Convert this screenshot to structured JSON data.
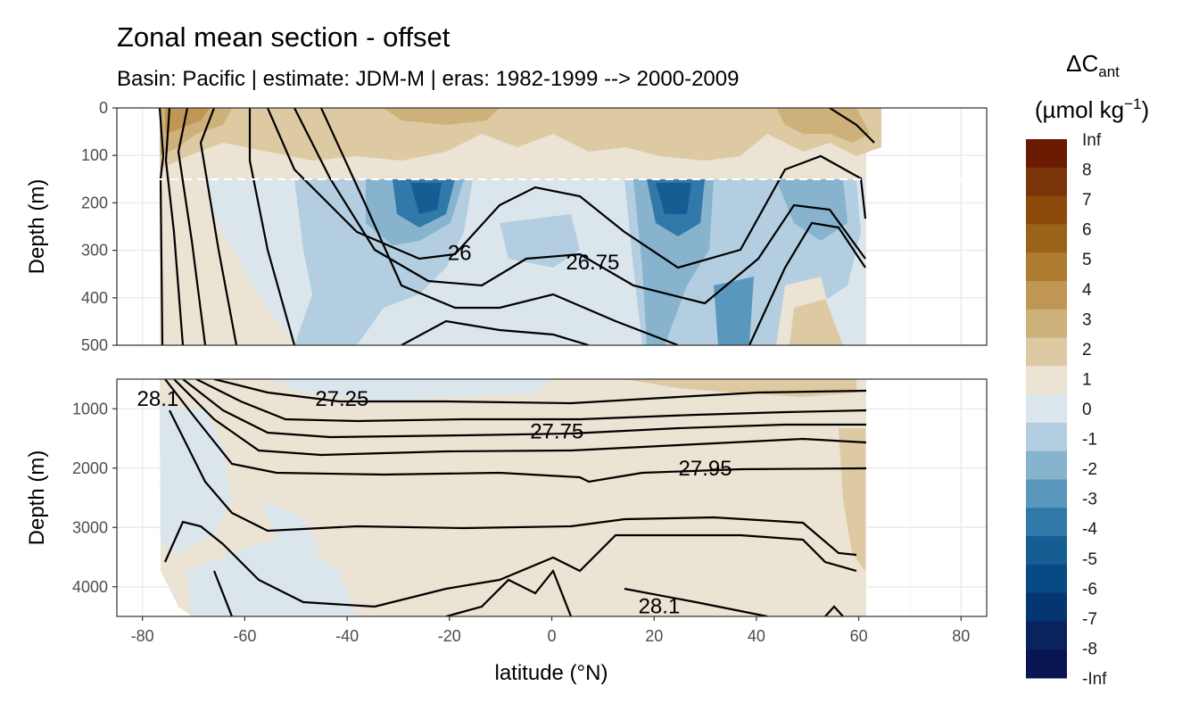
{
  "title": "Zonal mean section - offset",
  "subtitle": "Basin: Pacific | estimate: JDM-M | eras: 1982-1999 --> 2000-2009",
  "chart_data": {
    "type": "heatmap",
    "description_panels": [
      {
        "name": "upper",
        "ylabel": "Depth (m)",
        "yrange": [
          0,
          500
        ],
        "yticks": [
          0,
          100,
          200,
          300,
          400,
          500
        ],
        "contour_labels": [
          {
            "text": "26",
            "lat": -18,
            "depth": 305
          },
          {
            "text": "26.75",
            "lat": 8,
            "depth": 325
          }
        ]
      },
      {
        "name": "lower",
        "ylabel": "Depth (m)",
        "yrange": [
          500,
          4500
        ],
        "yticks": [
          1000,
          2000,
          3000,
          4000
        ],
        "contour_labels": [
          {
            "text": "28.1",
            "lat": -77,
            "depth": 830
          },
          {
            "text": "27.25",
            "lat": -41,
            "depth": 830
          },
          {
            "text": "27.75",
            "lat": 1,
            "depth": 1380
          },
          {
            "text": "27.95",
            "lat": 30,
            "depth": 2000
          },
          {
            "text": "28.1",
            "lat": 21,
            "depth": 4330
          }
        ]
      }
    ],
    "xlabel": "latitude (°N)",
    "xrange": [
      -85,
      85
    ],
    "xticks": [
      -80,
      -60,
      -40,
      -20,
      0,
      20,
      40,
      60,
      80
    ],
    "xtick_labels": [
      "-80",
      "-60",
      "-40",
      "-20",
      "0",
      "20",
      "40",
      "60",
      "80"
    ],
    "data_lat_range": [
      -76,
      61
    ],
    "legend": {
      "title_main": "ΔC",
      "title_sub": "ant",
      "unit": "(µmol kg",
      "unit_sup": "−1",
      "unit_end": ")",
      "labels": [
        "Inf",
        "8",
        "7",
        "6",
        "5",
        "4",
        "3",
        "2",
        "1",
        "0",
        "-1",
        "-2",
        "-3",
        "-4",
        "-5",
        "-6",
        "-7",
        "-8",
        "-Inf"
      ],
      "colors": [
        "#6b1a02",
        "#7a3407",
        "#8b4a0a",
        "#9b6318",
        "#ad7c2e",
        "#bf9653",
        "#ceb07a",
        "#ddc9a2",
        "#ebe3d3",
        "#dbe6ec",
        "#b3cee0",
        "#87b3ce",
        "#5a97bd",
        "#3179a8",
        "#145e94",
        "#074a84",
        "#053671",
        "#0a225e",
        "#081550"
      ]
    },
    "dashed_line_depth": 150,
    "panel_separator_depth": 500
  }
}
